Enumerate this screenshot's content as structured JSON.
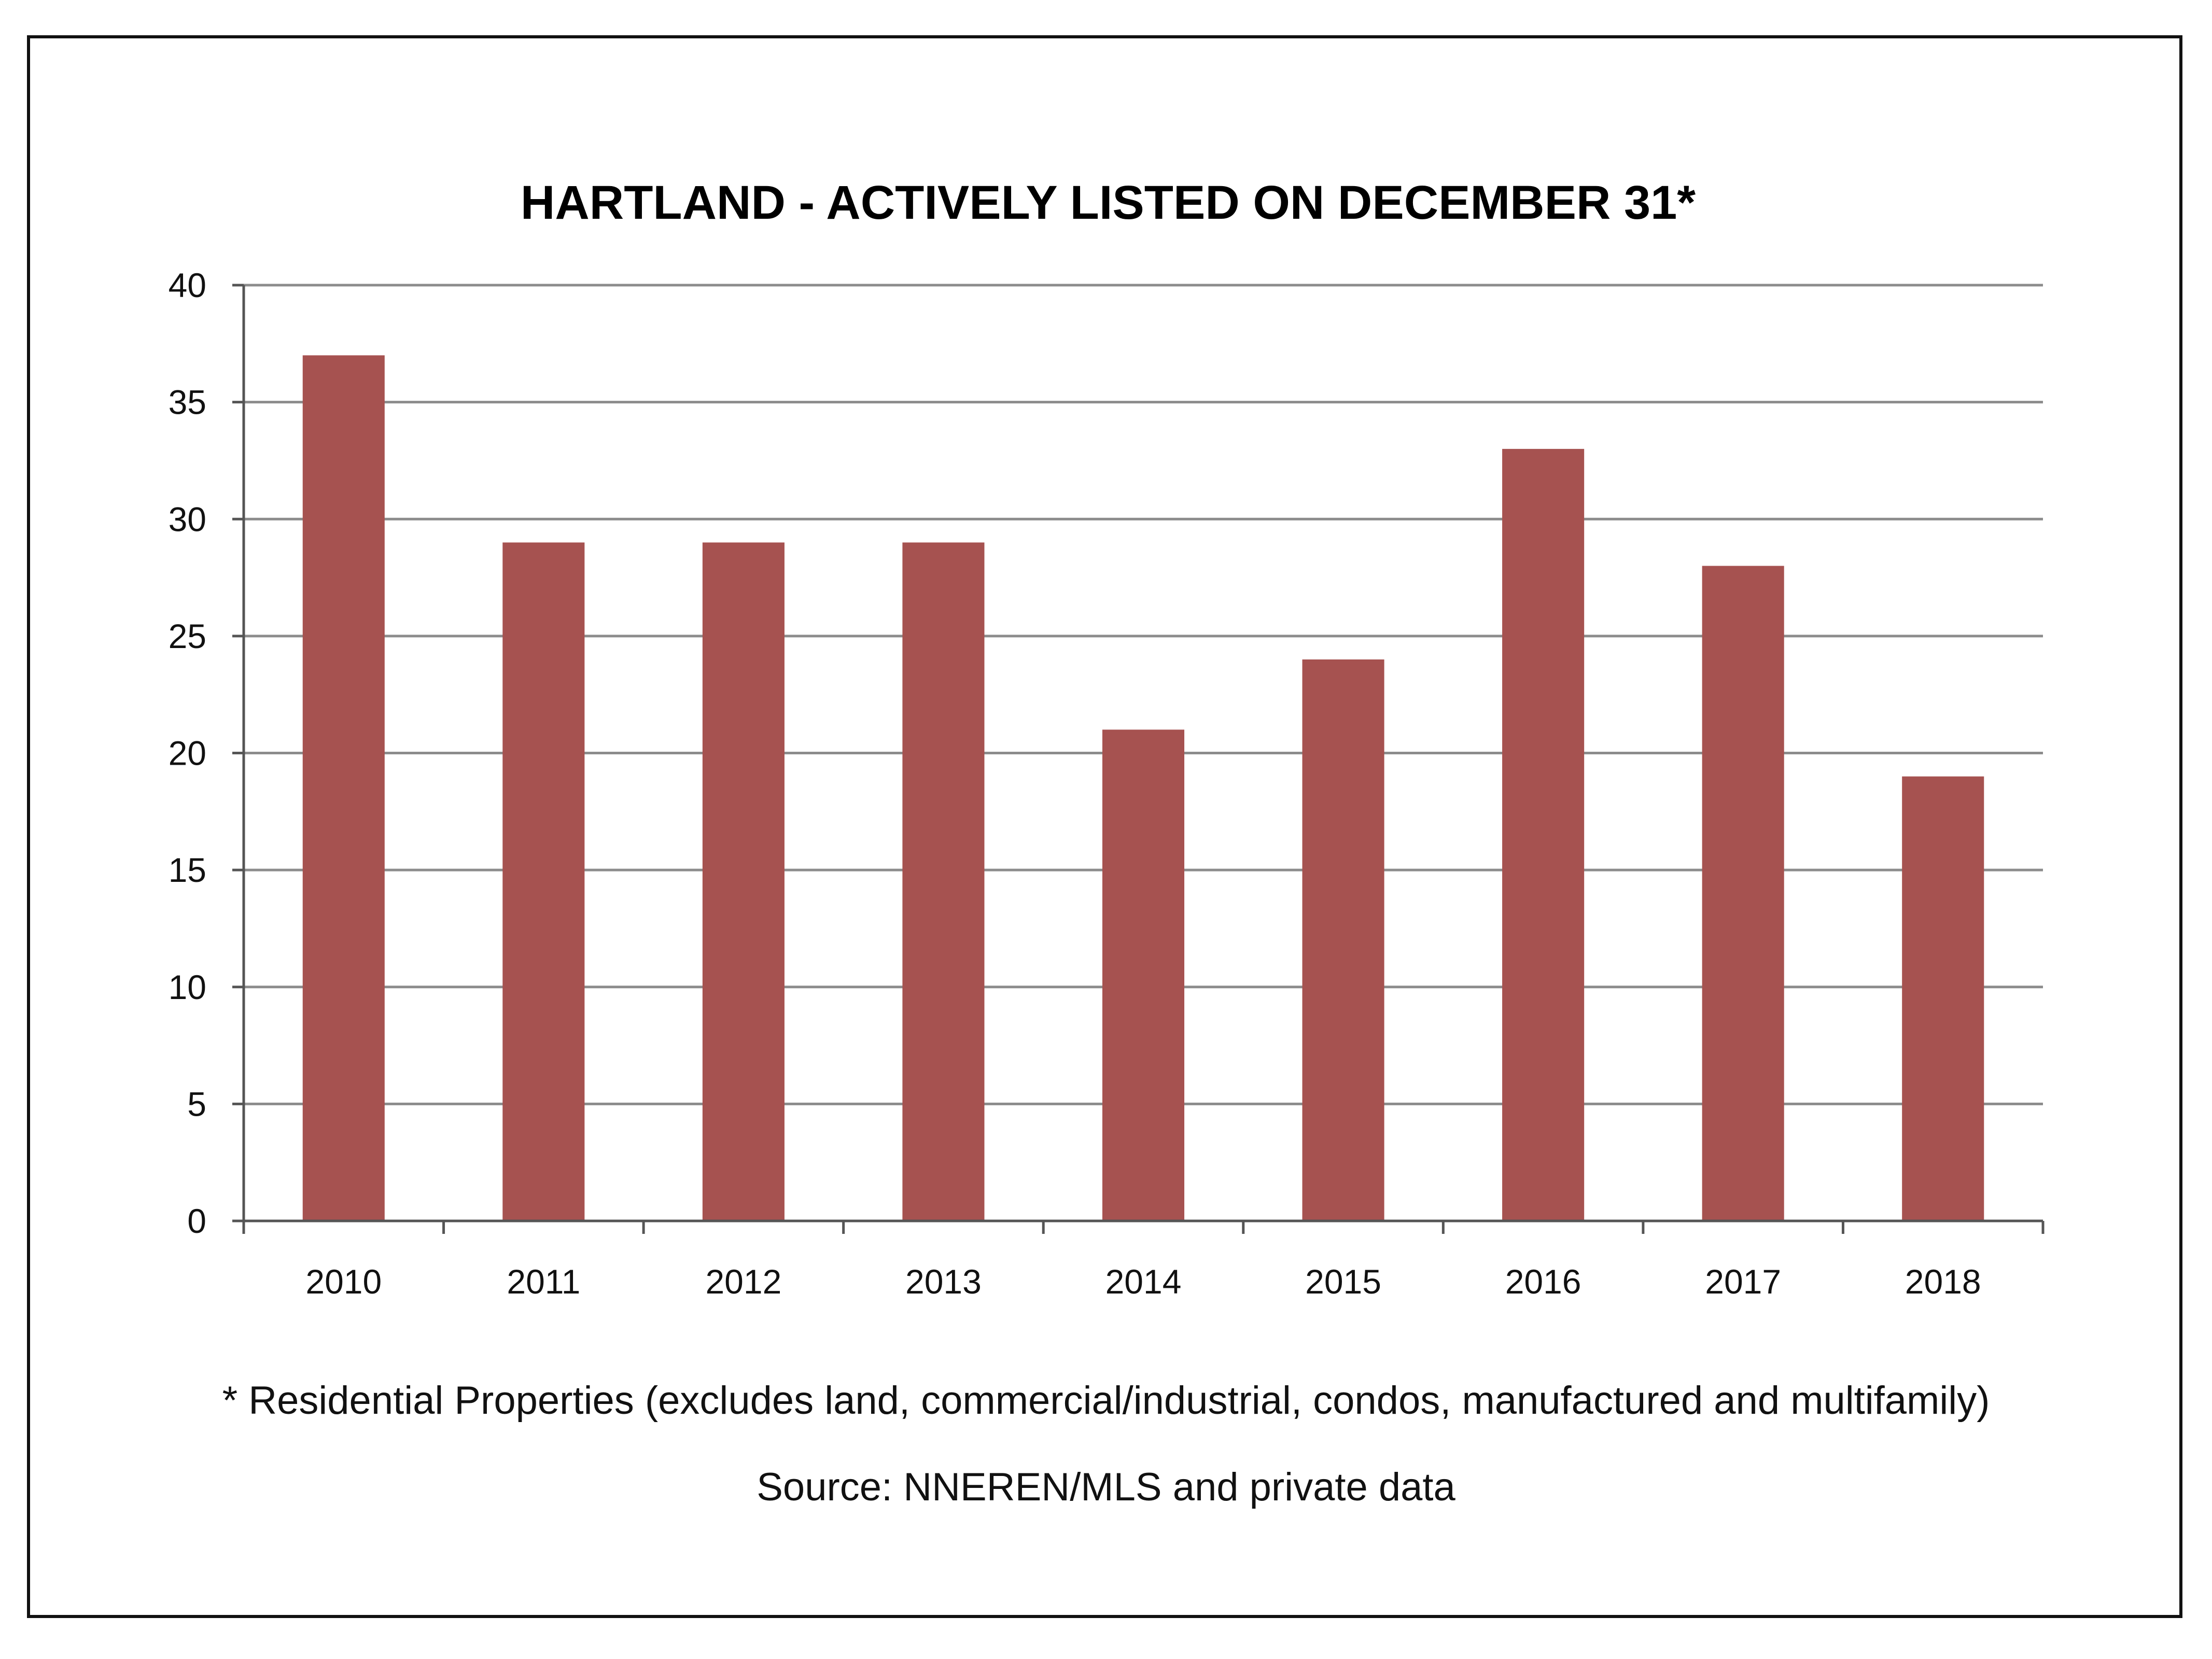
{
  "chart_data": {
    "type": "bar",
    "title": "HARTLAND - ACTIVELY LISTED ON DECEMBER 31*",
    "xlabel": "",
    "ylabel": "",
    "categories": [
      "2010",
      "2011",
      "2012",
      "2013",
      "2014",
      "2015",
      "2016",
      "2017",
      "2018"
    ],
    "values": [
      37,
      29,
      29,
      29,
      21,
      24,
      33,
      28,
      19
    ],
    "ylim": [
      0,
      40
    ],
    "yticks": [
      0,
      5,
      10,
      15,
      20,
      25,
      30,
      35,
      40
    ],
    "grid": true,
    "legend": "none",
    "bar_color": "#a65250",
    "grid_color": "#8c8c8c"
  },
  "notes": {
    "footnote": "* Residential Properties (excludes land, commercial/industrial, condos, manufactured and multifamily)",
    "source": "Source: NNEREN/MLS and private data"
  }
}
